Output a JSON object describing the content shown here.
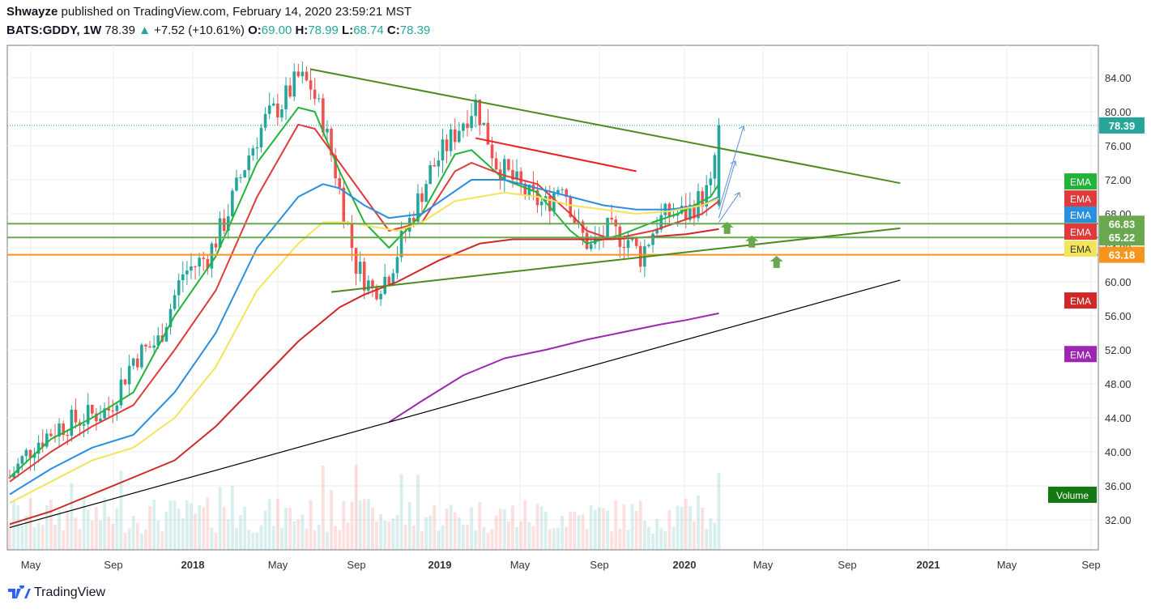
{
  "header": {
    "author": "Shwayze",
    "published_text": "published on TradingView.com, February 14, 2020 23:59:21 MST",
    "symbol": "BATS:GDDY, 1W",
    "last": "78.39",
    "change": "+7.52 (+10.61%)",
    "o_label": "O:",
    "o": "69.00",
    "h_label": "H:",
    "h": "78.99",
    "l_label": "L:",
    "l": "68.74",
    "c_label": "C:",
    "c": "78.39"
  },
  "footer": {
    "brand": "TradingView"
  },
  "colors": {
    "ema_green": "#22b33a",
    "ema_red": "#e03a3a",
    "ema_blue": "#2b8fe0",
    "ema_yellow": "#f3e55a",
    "ema_darkred": "#d02828",
    "ema_purple": "#9c27b0",
    "trend_green": "#4d8a1f",
    "resistance_red": "#f02020",
    "level_green": "#6aa84f",
    "level_orange": "#f7941d",
    "last_price": "#26a69a",
    "candle_up": "#26a69a",
    "candle_down": "#ef5350"
  },
  "chart_data": {
    "type": "candlestick",
    "title": "BATS:GDDY, 1W",
    "ylim": [
      28,
      87
    ],
    "y_ticks": [
      "32.00",
      "36.00",
      "40.00",
      "44.00",
      "48.00",
      "52.00",
      "56.00",
      "60.00",
      "64.00",
      "68.00",
      "72.00",
      "76.00",
      "80.00",
      "84.00"
    ],
    "x_ticks": [
      "May",
      "Sep",
      "2018",
      "May",
      "Sep",
      "2019",
      "May",
      "Sep",
      "2020",
      "May",
      "Sep",
      "2021",
      "May",
      "Sep"
    ],
    "price_labels": [
      {
        "text": "78.39",
        "value": 78.39,
        "color": "#26a69a"
      },
      {
        "text": "66.83",
        "value": 66.83,
        "color": "#6aa84f"
      },
      {
        "text": "65.22",
        "value": 65.22,
        "color": "#6aa84f"
      },
      {
        "text": "63.18",
        "value": 63.18,
        "color": "#f7941d"
      }
    ],
    "horizontal_levels": [
      66.83,
      65.22,
      63.18,
      78.39
    ],
    "indicator_tags": [
      {
        "text": "EMA",
        "color": "#22b33a",
        "value": 71.8
      },
      {
        "text": "EMA",
        "color": "#e03a3a",
        "value": 69.8
      },
      {
        "text": "EMA",
        "color": "#2b8fe0",
        "value": 67.9
      },
      {
        "text": "EMA",
        "color": "#e03a3a",
        "value": 65.9
      },
      {
        "text": "EMA",
        "color": "#f3e55a",
        "value": 63.9
      },
      {
        "text": "EMA",
        "color": "#d02828",
        "value": 57.8
      },
      {
        "text": "EMA",
        "color": "#9c27b0",
        "value": 51.5
      }
    ],
    "volume_tag": "Volume",
    "candle_keypoints": [
      [
        0,
        37
      ],
      [
        6,
        41
      ],
      [
        12,
        43
      ],
      [
        18,
        44
      ],
      [
        24,
        45
      ],
      [
        30,
        51
      ],
      [
        36,
        53
      ],
      [
        42,
        61
      ],
      [
        48,
        63
      ],
      [
        52,
        67
      ],
      [
        58,
        75
      ],
      [
        62,
        79
      ],
      [
        66,
        81
      ],
      [
        70,
        84
      ],
      [
        73,
        83
      ],
      [
        76,
        79
      ],
      [
        79,
        73
      ],
      [
        84,
        62
      ],
      [
        88,
        59
      ],
      [
        92,
        61
      ],
      [
        96,
        66
      ],
      [
        102,
        73
      ],
      [
        106,
        76
      ],
      [
        110,
        79
      ],
      [
        113,
        81
      ],
      [
        118,
        74
      ],
      [
        122,
        72
      ],
      [
        126,
        70
      ],
      [
        130,
        69
      ],
      [
        134,
        72
      ],
      [
        138,
        66
      ],
      [
        141,
        64
      ],
      [
        145,
        66
      ],
      [
        150,
        65
      ],
      [
        153,
        63
      ],
      [
        157,
        67
      ],
      [
        160,
        68
      ],
      [
        164,
        68
      ],
      [
        168,
        70
      ],
      [
        170,
        71
      ],
      [
        172,
        78.39
      ]
    ],
    "ema_series": {
      "ema_green": [
        [
          0,
          37
        ],
        [
          10,
          41.5
        ],
        [
          20,
          44
        ],
        [
          30,
          47
        ],
        [
          40,
          56
        ],
        [
          50,
          63
        ],
        [
          60,
          74
        ],
        [
          70,
          80.5
        ],
        [
          74,
          80
        ],
        [
          80,
          73
        ],
        [
          86,
          67
        ],
        [
          92,
          64
        ],
        [
          100,
          68
        ],
        [
          108,
          75
        ],
        [
          112,
          75.5
        ],
        [
          120,
          72
        ],
        [
          128,
          70.5
        ],
        [
          136,
          66
        ],
        [
          140,
          64.5
        ],
        [
          148,
          65.5
        ],
        [
          156,
          67
        ],
        [
          162,
          68
        ],
        [
          166,
          69
        ],
        [
          170,
          70
        ],
        [
          172,
          71.5
        ]
      ],
      "ema_red": [
        [
          0,
          36.5
        ],
        [
          10,
          40
        ],
        [
          20,
          43
        ],
        [
          30,
          45.5
        ],
        [
          40,
          52
        ],
        [
          50,
          59
        ],
        [
          60,
          70
        ],
        [
          70,
          78.5
        ],
        [
          74,
          78
        ],
        [
          80,
          74
        ],
        [
          86,
          70
        ],
        [
          92,
          66
        ],
        [
          100,
          67
        ],
        [
          108,
          73
        ],
        [
          112,
          74
        ],
        [
          120,
          72.5
        ],
        [
          128,
          71.5
        ],
        [
          136,
          68
        ],
        [
          140,
          66
        ],
        [
          146,
          65
        ],
        [
          156,
          66
        ],
        [
          162,
          67
        ],
        [
          168,
          68
        ],
        [
          172,
          69.5
        ]
      ],
      "ema_blue": [
        [
          0,
          35
        ],
        [
          10,
          38
        ],
        [
          20,
          40.5
        ],
        [
          30,
          42
        ],
        [
          40,
          47
        ],
        [
          50,
          54
        ],
        [
          60,
          64
        ],
        [
          70,
          70
        ],
        [
          76,
          71.5
        ],
        [
          80,
          71
        ],
        [
          86,
          69
        ],
        [
          92,
          67.5
        ],
        [
          100,
          68
        ],
        [
          106,
          70
        ],
        [
          112,
          72
        ],
        [
          120,
          72
        ],
        [
          128,
          71
        ],
        [
          136,
          70
        ],
        [
          144,
          69
        ],
        [
          152,
          68.5
        ],
        [
          160,
          68.5
        ],
        [
          168,
          69
        ],
        [
          172,
          70
        ]
      ],
      "ema_yellow": [
        [
          0,
          34
        ],
        [
          10,
          36.5
        ],
        [
          20,
          39
        ],
        [
          30,
          40.5
        ],
        [
          40,
          44
        ],
        [
          50,
          50
        ],
        [
          60,
          59
        ],
        [
          70,
          64.5
        ],
        [
          76,
          67
        ],
        [
          82,
          67
        ],
        [
          88,
          66.5
        ],
        [
          94,
          66
        ],
        [
          100,
          67
        ],
        [
          108,
          69.5
        ],
        [
          114,
          70
        ],
        [
          120,
          70.5
        ],
        [
          128,
          70
        ],
        [
          136,
          69
        ],
        [
          144,
          68.5
        ],
        [
          152,
          68
        ],
        [
          160,
          68.3
        ],
        [
          168,
          69
        ],
        [
          172,
          69.8
        ]
      ],
      "ema_darkred": [
        [
          0,
          31.5
        ],
        [
          10,
          33
        ],
        [
          20,
          35
        ],
        [
          30,
          37
        ],
        [
          40,
          39
        ],
        [
          50,
          43
        ],
        [
          60,
          48
        ],
        [
          70,
          53
        ],
        [
          80,
          57
        ],
        [
          86,
          58.5
        ],
        [
          94,
          60
        ],
        [
          104,
          62.5
        ],
        [
          114,
          64.5
        ],
        [
          122,
          65
        ],
        [
          134,
          65
        ],
        [
          146,
          65
        ],
        [
          156,
          65.3
        ],
        [
          164,
          65.6
        ],
        [
          172,
          66.2
        ]
      ],
      "ema_purple": [
        [
          92,
          43.5
        ],
        [
          100,
          46
        ],
        [
          110,
          49
        ],
        [
          120,
          51
        ],
        [
          130,
          52
        ],
        [
          140,
          53.2
        ],
        [
          150,
          54.2
        ],
        [
          158,
          55
        ],
        [
          164,
          55.5
        ],
        [
          172,
          56.3
        ]
      ]
    },
    "trendlines": [
      {
        "name": "upper-triangle",
        "color": "#4d8a1f",
        "from": [
          73,
          85
        ],
        "to": [
          216,
          71.6
        ]
      },
      {
        "name": "lower-triangle",
        "color": "#4d8a1f",
        "from": [
          78,
          58.8
        ],
        "to": [
          216,
          66.3
        ]
      },
      {
        "name": "long-term-support",
        "color": "#000000",
        "from": [
          0,
          31.1
        ],
        "to": [
          216,
          60.2
        ]
      },
      {
        "name": "resistance",
        "color": "#f02020",
        "from": [
          113,
          76.9
        ],
        "to": [
          152,
          73
        ]
      }
    ]
  }
}
